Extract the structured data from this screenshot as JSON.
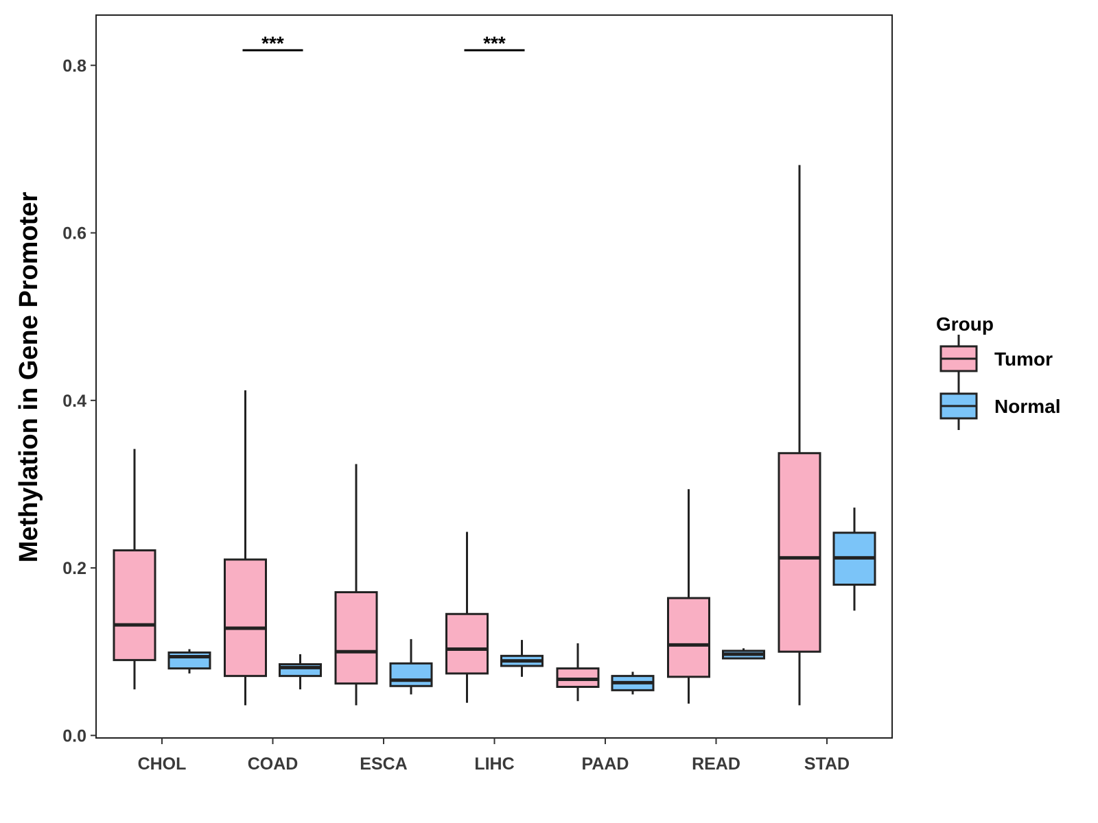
{
  "chart_data": {
    "type": "boxplot",
    "title": "",
    "xlabel": "",
    "ylabel": "Methylation in Gene Promoter",
    "ylim": [
      -0.003,
      0.86
    ],
    "yticks": [
      0.0,
      0.2,
      0.4,
      0.6,
      0.8
    ],
    "ytick_labels": [
      "0.0",
      "0.2",
      "0.4",
      "0.6",
      "0.8"
    ],
    "categories": [
      "CHOL",
      "COAD",
      "ESCA",
      "LIHC",
      "PAAD",
      "READ",
      "STAD"
    ],
    "series": [
      {
        "name": "Tumor",
        "color": "#F9AFC3",
        "boxes": [
          {
            "category": "CHOL",
            "whisker_low": 0.055,
            "q1": 0.09,
            "median": 0.132,
            "q3": 0.221,
            "whisker_high": 0.342
          },
          {
            "category": "COAD",
            "whisker_low": 0.036,
            "q1": 0.071,
            "median": 0.128,
            "q3": 0.21,
            "whisker_high": 0.412
          },
          {
            "category": "ESCA",
            "whisker_low": 0.036,
            "q1": 0.062,
            "median": 0.1,
            "q3": 0.171,
            "whisker_high": 0.324
          },
          {
            "category": "LIHC",
            "whisker_low": 0.039,
            "q1": 0.074,
            "median": 0.103,
            "q3": 0.145,
            "whisker_high": 0.243
          },
          {
            "category": "PAAD",
            "whisker_low": 0.041,
            "q1": 0.058,
            "median": 0.067,
            "q3": 0.08,
            "whisker_high": 0.11
          },
          {
            "category": "READ",
            "whisker_low": 0.038,
            "q1": 0.07,
            "median": 0.108,
            "q3": 0.164,
            "whisker_high": 0.294
          },
          {
            "category": "STAD",
            "whisker_low": 0.036,
            "q1": 0.1,
            "median": 0.212,
            "q3": 0.337,
            "whisker_high": 0.681
          }
        ]
      },
      {
        "name": "Normal",
        "color": "#7BC4F8",
        "boxes": [
          {
            "category": "CHOL",
            "whisker_low": 0.074,
            "q1": 0.08,
            "median": 0.094,
            "q3": 0.099,
            "whisker_high": 0.103
          },
          {
            "category": "COAD",
            "whisker_low": 0.055,
            "q1": 0.071,
            "median": 0.081,
            "q3": 0.085,
            "whisker_high": 0.097
          },
          {
            "category": "ESCA",
            "whisker_low": 0.049,
            "q1": 0.059,
            "median": 0.066,
            "q3": 0.086,
            "whisker_high": 0.115
          },
          {
            "category": "LIHC",
            "whisker_low": 0.07,
            "q1": 0.083,
            "median": 0.089,
            "q3": 0.095,
            "whisker_high": 0.114
          },
          {
            "category": "PAAD",
            "whisker_low": 0.049,
            "q1": 0.054,
            "median": 0.063,
            "q3": 0.071,
            "whisker_high": 0.076
          },
          {
            "category": "READ",
            "whisker_low": 0.092,
            "q1": 0.092,
            "median": 0.097,
            "q3": 0.101,
            "whisker_high": 0.104
          },
          {
            "category": "STAD",
            "whisker_low": 0.149,
            "q1": 0.18,
            "median": 0.212,
            "q3": 0.242,
            "whisker_high": 0.272
          }
        ]
      }
    ],
    "significance": [
      {
        "category": "COAD",
        "label": "***",
        "y": 0.818
      },
      {
        "category": "LIHC",
        "label": "***",
        "y": 0.818
      }
    ],
    "legend": {
      "title": "Group",
      "position": "right",
      "entries": [
        "Tumor",
        "Normal"
      ]
    },
    "grid": false
  }
}
